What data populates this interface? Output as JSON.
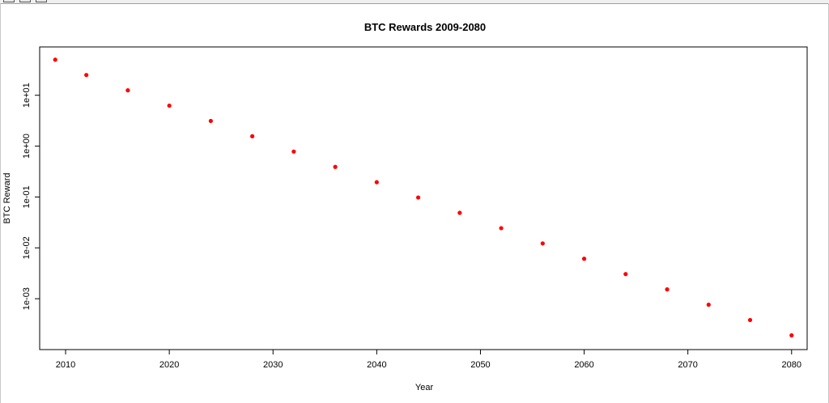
{
  "chart_data": {
    "type": "scatter",
    "title": "BTC Rewards 2009-2080",
    "xlabel": "Year",
    "ylabel": "BTC Reward",
    "log_y": true,
    "xlim": [
      2007.5,
      2081.5
    ],
    "ylim_log10": [
      -4.0,
      1.95
    ],
    "x_ticks": [
      2010,
      2020,
      2030,
      2040,
      2050,
      2060,
      2070,
      2080
    ],
    "x_tick_labels": [
      "2010",
      "2020",
      "2030",
      "2040",
      "2050",
      "2060",
      "2070",
      "2080"
    ],
    "y_ticks": [
      0.001,
      0.01,
      0.1,
      1,
      10
    ],
    "y_tick_labels": [
      "1e-03",
      "1e-02",
      "1e-01",
      "1e+00",
      "1e+01"
    ],
    "point_color": "#ff0000",
    "points": [
      {
        "x": 2009,
        "y": 50
      },
      {
        "x": 2012,
        "y": 25
      },
      {
        "x": 2016,
        "y": 12.5
      },
      {
        "x": 2020,
        "y": 6.25
      },
      {
        "x": 2024,
        "y": 3.125
      },
      {
        "x": 2028,
        "y": 1.5625
      },
      {
        "x": 2032,
        "y": 0.78125
      },
      {
        "x": 2036,
        "y": 0.390625
      },
      {
        "x": 2040,
        "y": 0.1953125
      },
      {
        "x": 2044,
        "y": 0.09765625
      },
      {
        "x": 2048,
        "y": 0.048828125
      },
      {
        "x": 2052,
        "y": 0.0244140625
      },
      {
        "x": 2056,
        "y": 0.01220703125
      },
      {
        "x": 2060,
        "y": 0.006103515625
      },
      {
        "x": 2064,
        "y": 0.0030517578125
      },
      {
        "x": 2068,
        "y": 0.00152587890625
      },
      {
        "x": 2072,
        "y": 0.000762939453125
      },
      {
        "x": 2076,
        "y": 0.0003814697265625
      },
      {
        "x": 2080,
        "y": 0.00019073486328125
      }
    ]
  }
}
